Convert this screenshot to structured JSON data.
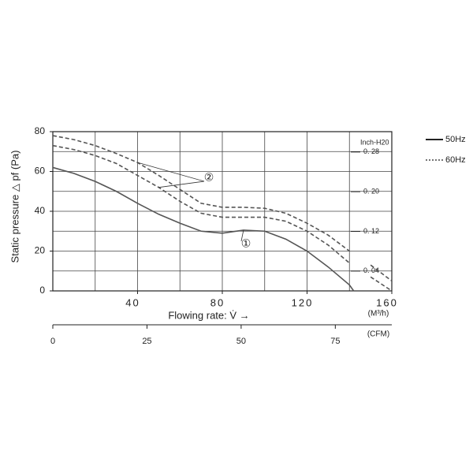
{
  "chart_data": {
    "type": "line",
    "ylabel": "Static pressure △ pf (Pa)",
    "xlabel": "Flowing rate: V̇ →",
    "xunit": "(M³/h)",
    "xlim": [
      0,
      160
    ],
    "xticks": [
      40,
      80,
      120,
      160
    ],
    "xgrid": [
      0,
      20,
      40,
      60,
      80,
      100,
      120,
      140,
      160
    ],
    "ylim": [
      0,
      80
    ],
    "yticks": [
      0,
      20,
      40,
      60,
      80
    ],
    "ygrid": [
      0,
      10,
      20,
      30,
      40,
      50,
      60,
      70,
      80
    ],
    "y2label": "Inch-H20",
    "y2lim": [
      0,
      0.321
    ],
    "y2ticks": [
      {
        "value": 0.28,
        "label": "0. 28"
      },
      {
        "value": 0.2,
        "label": "0. 20"
      },
      {
        "value": 0.12,
        "label": "0. 12"
      },
      {
        "value": 0.04,
        "label": "0. 04"
      }
    ],
    "x2label": "(CFM)",
    "x2lim": [
      0,
      90
    ],
    "x2ticks": [
      0,
      25,
      50,
      75
    ],
    "grid": true,
    "x": [
      0,
      10,
      20,
      30,
      40,
      50,
      60,
      70,
      80,
      90,
      100,
      110,
      120,
      130,
      140,
      142,
      150,
      160
    ],
    "series": [
      {
        "dash": "solid",
        "color": "#555555",
        "values": [
          62,
          59,
          55,
          50,
          44,
          38.5,
          34,
          30,
          29,
          30.5,
          30,
          26,
          20,
          12,
          3,
          0,
          null,
          null
        ]
      },
      {
        "dash": "dashed",
        "color": "#555555",
        "values": [
          78,
          76,
          73,
          69,
          64.5,
          58,
          51,
          44,
          42,
          42,
          41.5,
          39,
          34,
          28,
          20,
          null,
          13,
          5
        ]
      },
      {
        "dash": "dashed",
        "color": "#555555",
        "values": [
          73,
          71,
          68,
          64,
          58,
          52,
          45,
          39,
          37,
          37,
          37,
          35,
          30,
          23,
          14,
          null,
          7,
          0
        ]
      }
    ],
    "annotations": [
      {
        "text": "①",
        "series": [
          0
        ]
      },
      {
        "text": "②",
        "series": [
          1,
          2
        ]
      }
    ],
    "legend": [
      {
        "name": "50Hz",
        "dash": "solid"
      },
      {
        "name": "60Hz",
        "dash": "dotted"
      }
    ]
  }
}
